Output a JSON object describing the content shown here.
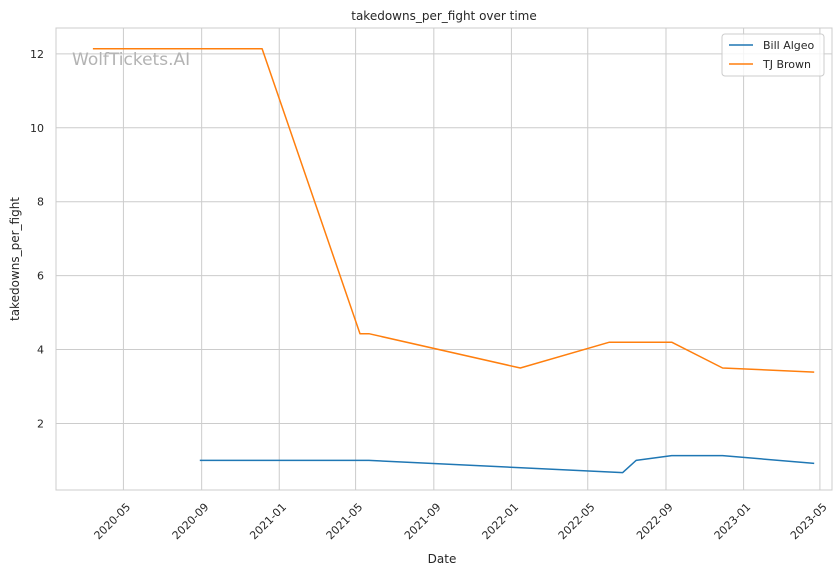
{
  "chart_data": {
    "type": "line",
    "title": "takedowns_per_fight over time",
    "xlabel": "Date",
    "ylabel": "takedowns_per_fight",
    "watermark": "WolfTickets.AI",
    "x_ticks": [
      "2020-05",
      "2020-09",
      "2021-01",
      "2021-05",
      "2021-09",
      "2022-01",
      "2022-05",
      "2022-09",
      "2023-01",
      "2023-05"
    ],
    "y_ticks": [
      2,
      4,
      6,
      8,
      10,
      12
    ],
    "xlim": [
      "2020-01-16",
      "2023-05-20"
    ],
    "ylim": [
      0.2,
      12.7
    ],
    "grid": true,
    "legend_position": "top-right",
    "series": [
      {
        "name": "Bill Algeo",
        "color": "#1f77b4",
        "points": [
          {
            "x": "2020-08-29",
            "y": 1.0
          },
          {
            "x": "2021-05-22",
            "y": 1.0
          },
          {
            "x": "2022-06-25",
            "y": 0.67
          },
          {
            "x": "2022-07-16",
            "y": 1.0
          },
          {
            "x": "2022-09-10",
            "y": 1.13
          },
          {
            "x": "2022-11-29",
            "y": 1.13
          },
          {
            "x": "2023-04-22",
            "y": 0.92
          }
        ]
      },
      {
        "name": "TJ Brown",
        "color": "#ff7f0e",
        "points": [
          {
            "x": "2020-03-14",
            "y": 12.14
          },
          {
            "x": "2020-12-05",
            "y": 12.14
          },
          {
            "x": "2021-05-08",
            "y": 4.43
          },
          {
            "x": "2021-05-22",
            "y": 4.43
          },
          {
            "x": "2022-01-15",
            "y": 3.5
          },
          {
            "x": "2022-06-04",
            "y": 4.2
          },
          {
            "x": "2022-09-10",
            "y": 4.2
          },
          {
            "x": "2022-11-29",
            "y": 3.5
          },
          {
            "x": "2023-04-22",
            "y": 3.39
          }
        ]
      }
    ]
  }
}
